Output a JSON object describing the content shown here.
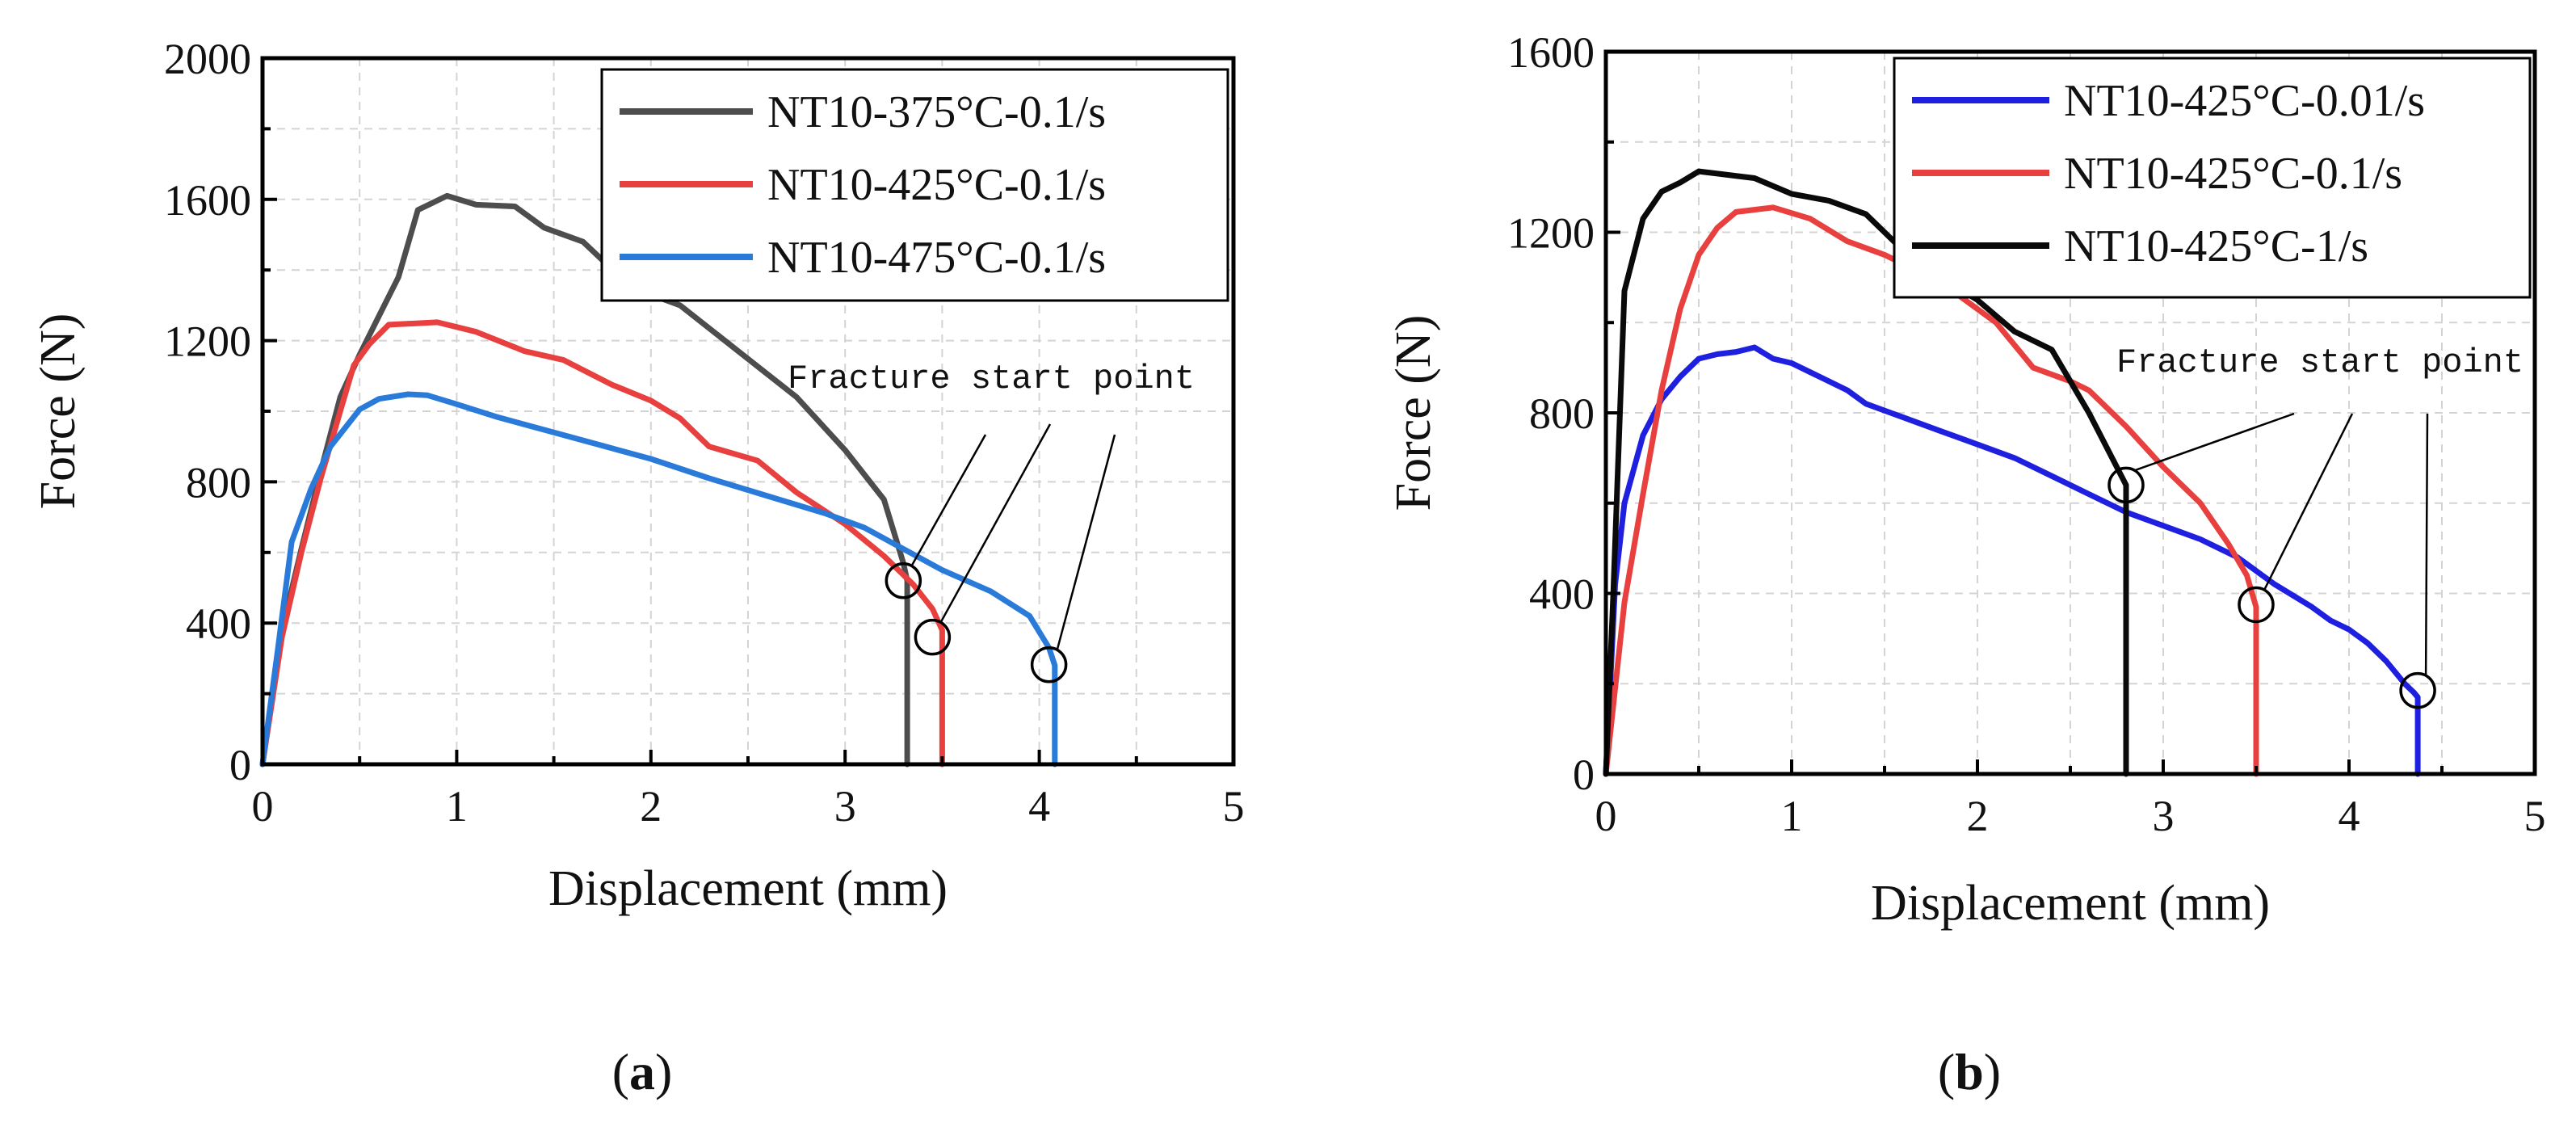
{
  "chart_data": [
    {
      "type": "line",
      "panel_label": "a",
      "xlabel": "Displacement (mm)",
      "ylabel": "Force (N)",
      "xlim": [
        0,
        5
      ],
      "ylim": [
        0,
        2000
      ],
      "xticks": [
        0,
        1,
        2,
        3,
        4,
        5
      ],
      "yticks": [
        0,
        400,
        800,
        1200,
        1600,
        2000
      ],
      "grid": true,
      "legend_position": "top-right",
      "annotation": "Fracture start point",
      "series": [
        {
          "name": "NT10-375°C-0.1/s",
          "color": "#4d4d4d",
          "x": [
            0,
            0.1,
            0.2,
            0.3,
            0.4,
            0.5,
            0.6,
            0.7,
            0.8,
            0.95,
            1.1,
            1.3,
            1.45,
            1.65,
            1.9,
            2.15,
            2.45,
            2.75,
            3.0,
            3.2,
            3.3,
            3.32,
            3.32
          ],
          "y": [
            0,
            380,
            610,
            830,
            1040,
            1160,
            1270,
            1380,
            1570,
            1610,
            1585,
            1580,
            1520,
            1480,
            1350,
            1300,
            1170,
            1040,
            890,
            750,
            570,
            520,
            0
          ]
        },
        {
          "name": "NT10-425°C-0.1/s",
          "color": "#e8403e",
          "x": [
            0,
            0.1,
            0.2,
            0.3,
            0.4,
            0.47,
            0.55,
            0.65,
            0.9,
            1.1,
            1.35,
            1.55,
            1.8,
            2.0,
            2.15,
            2.3,
            2.55,
            2.75,
            3.0,
            3.2,
            3.35,
            3.45,
            3.5,
            3.5
          ],
          "y": [
            0,
            360,
            600,
            810,
            1000,
            1130,
            1190,
            1245,
            1252,
            1225,
            1170,
            1145,
            1075,
            1030,
            980,
            900,
            860,
            770,
            680,
            590,
            510,
            440,
            380,
            0
          ]
        },
        {
          "name": "NT10-475°C-0.1/s",
          "color": "#2a7ad9",
          "x": [
            0,
            0.08,
            0.15,
            0.25,
            0.35,
            0.45,
            0.5,
            0.6,
            0.75,
            0.85,
            1.0,
            1.2,
            1.5,
            1.8,
            2.0,
            2.3,
            2.6,
            2.9,
            3.1,
            3.3,
            3.5,
            3.75,
            3.95,
            4.05,
            4.08,
            4.08
          ],
          "y": [
            0,
            330,
            630,
            780,
            900,
            970,
            1005,
            1035,
            1048,
            1045,
            1020,
            985,
            940,
            895,
            865,
            810,
            760,
            710,
            670,
            610,
            550,
            490,
            420,
            330,
            280,
            0
          ]
        }
      ],
      "circles": [
        {
          "x": 3.3,
          "y": 520
        },
        {
          "x": 3.45,
          "y": 360
        },
        {
          "x": 4.05,
          "y": 282
        }
      ]
    },
    {
      "type": "line",
      "panel_label": "b",
      "xlabel": "Displacement (mm)",
      "ylabel": "Force (N)",
      "xlim": [
        0,
        5
      ],
      "ylim": [
        0,
        1600
      ],
      "xticks": [
        0,
        1,
        2,
        3,
        4,
        5
      ],
      "yticks": [
        0,
        400,
        800,
        1200,
        1600
      ],
      "grid": true,
      "legend_position": "top-right",
      "annotation": "Fracture start point",
      "series": [
        {
          "name": "NT10-425°C-0.01/s",
          "color": "#1f1fe0",
          "x": [
            0,
            0.05,
            0.1,
            0.2,
            0.3,
            0.4,
            0.5,
            0.6,
            0.7,
            0.8,
            0.9,
            1.0,
            1.1,
            1.2,
            1.3,
            1.4,
            1.6,
            1.8,
            2.0,
            2.2,
            2.4,
            2.6,
            2.8,
            3.0,
            3.2,
            3.4,
            3.6,
            3.8,
            3.9,
            4.0,
            4.1,
            4.2,
            4.3,
            4.35,
            4.37,
            4.37
          ],
          "y": [
            0,
            420,
            600,
            750,
            830,
            880,
            920,
            930,
            935,
            945,
            920,
            910,
            890,
            870,
            850,
            820,
            790,
            760,
            730,
            700,
            660,
            620,
            580,
            550,
            520,
            480,
            420,
            370,
            340,
            320,
            290,
            250,
            200,
            180,
            170,
            0
          ]
        },
        {
          "name": "NT10-425°C-0.1/s",
          "color": "#e8403e",
          "x": [
            0,
            0.1,
            0.2,
            0.3,
            0.4,
            0.5,
            0.6,
            0.7,
            0.9,
            1.1,
            1.3,
            1.5,
            1.7,
            1.9,
            2.1,
            2.3,
            2.5,
            2.6,
            2.8,
            3.0,
            3.2,
            3.35,
            3.45,
            3.5,
            3.5
          ],
          "y": [
            0,
            380,
            620,
            850,
            1030,
            1150,
            1210,
            1245,
            1255,
            1230,
            1180,
            1150,
            1110,
            1060,
            1000,
            900,
            870,
            850,
            770,
            680,
            600,
            510,
            440,
            370,
            0
          ]
        },
        {
          "name": "NT10-425°C-1/s",
          "color": "#0a0a0a",
          "x": [
            0,
            0.04,
            0.1,
            0.2,
            0.3,
            0.4,
            0.5,
            0.6,
            0.8,
            1.0,
            1.2,
            1.4,
            1.6,
            1.8,
            2.0,
            2.2,
            2.4,
            2.6,
            2.8,
            2.8
          ],
          "y": [
            0,
            400,
            1070,
            1230,
            1290,
            1310,
            1335,
            1330,
            1320,
            1285,
            1270,
            1240,
            1160,
            1100,
            1050,
            980,
            940,
            800,
            640,
            0
          ]
        }
      ],
      "circles": [
        {
          "x": 2.8,
          "y": 640
        },
        {
          "x": 3.5,
          "y": 375
        },
        {
          "x": 4.37,
          "y": 185
        }
      ]
    }
  ]
}
